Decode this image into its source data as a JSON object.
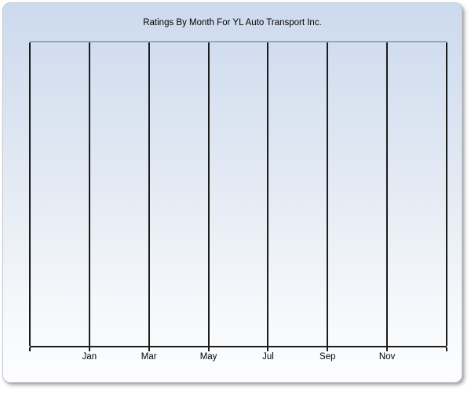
{
  "window": {
    "kind": "chart-panel"
  },
  "chart_data": {
    "type": "line",
    "title": "Ratings By Month For YL Auto Transport Inc.",
    "xlabel": "",
    "ylabel": "",
    "x_tick_labels": [
      "Jan",
      "Mar",
      "May",
      "Jul",
      "Sep",
      "Nov"
    ],
    "x_tick_step_months": 2,
    "x_intervals": 7,
    "gridlines": "vertical-only",
    "y_tick_labels": [],
    "series": [],
    "notes": "empty plot - no data points rendered"
  },
  "colors": {
    "line": "#1c1c1c",
    "plot_top_border": "#9aa6ba",
    "panel_top": "#ccdaee",
    "panel_bottom": "#fdfdfe",
    "title_text": "#000000",
    "page_background": "#ffffff"
  }
}
